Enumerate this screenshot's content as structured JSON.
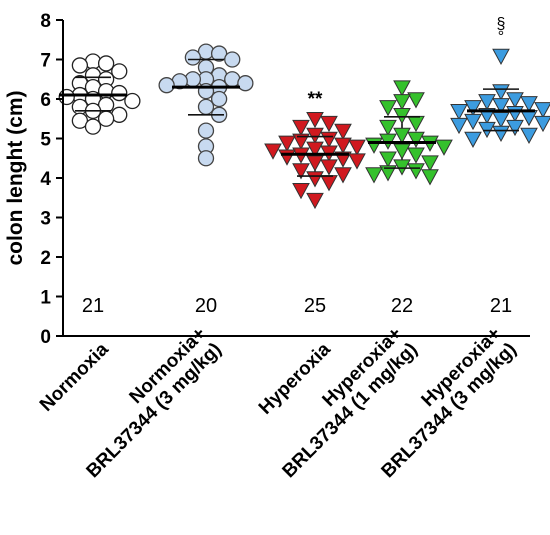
{
  "chart_data": {
    "type": "scatter",
    "title": "",
    "xlabel": "",
    "ylabel": "colon lenght (cm)",
    "ylim": [
      0,
      8
    ],
    "yticks": [
      "0",
      "1",
      "2",
      "3",
      "4",
      "5",
      "6",
      "7",
      "8"
    ],
    "grid": false,
    "categories": [
      {
        "lines": [
          "Normoxia"
        ]
      },
      {
        "lines": [
          "Normoxia+",
          "BRL37344 (3 mg/kg)"
        ]
      },
      {
        "lines": [
          "Hyperoxia"
        ]
      },
      {
        "lines": [
          "Hyperoxia+",
          "BRL37344 (1 mg/kg)"
        ]
      },
      {
        "lines": [
          "Hyperoxia+",
          "BRL37344 (3 mg/kg)"
        ]
      }
    ],
    "series": [
      {
        "marker": "circle",
        "fill": "#ffffff",
        "stroke": "#222222",
        "mean": 6.1,
        "sd_low": 5.7,
        "sd_high": 6.55,
        "n": "21",
        "annotation": [],
        "values": [
          6.95,
          6.9,
          6.85,
          6.7,
          6.6,
          6.5,
          6.4,
          6.3,
          6.2,
          6.15,
          6.1,
          6.05,
          6.0,
          5.95,
          5.85,
          5.8,
          5.7,
          5.6,
          5.5,
          5.45,
          5.3
        ]
      },
      {
        "marker": "circle",
        "fill": "#c8daf0",
        "stroke": "#444444",
        "mean": 6.3,
        "sd_low": 5.6,
        "sd_high": 7.0,
        "n": "20",
        "annotation": [],
        "values": [
          7.2,
          7.15,
          7.05,
          7.0,
          6.8,
          6.6,
          6.5,
          6.5,
          6.5,
          6.45,
          6.4,
          6.35,
          6.3,
          6.2,
          6.0,
          5.8,
          5.6,
          5.2,
          4.8,
          4.5
        ]
      },
      {
        "marker": "triangle",
        "fill": "#d0191f",
        "stroke": "#333333",
        "mean": 4.6,
        "sd_low": 4.05,
        "sd_high": 5.05,
        "n": "25",
        "annotation": [
          "**"
        ],
        "values": [
          5.5,
          5.4,
          5.3,
          5.2,
          5.1,
          5.0,
          4.95,
          4.9,
          4.85,
          4.8,
          4.75,
          4.7,
          4.65,
          4.6,
          4.55,
          4.5,
          4.45,
          4.4,
          4.3,
          4.2,
          4.1,
          4.0,
          3.9,
          3.7,
          3.45
        ]
      },
      {
        "marker": "triangle",
        "fill": "#35c12c",
        "stroke": "#333333",
        "mean": 4.9,
        "sd_low": 4.25,
        "sd_high": 5.55,
        "n": "22",
        "annotation": [],
        "values": [
          6.3,
          6.0,
          5.95,
          5.8,
          5.6,
          5.4,
          5.3,
          5.1,
          5.0,
          4.95,
          4.9,
          4.85,
          4.8,
          4.7,
          4.6,
          4.5,
          4.4,
          4.3,
          4.2,
          4.15,
          4.1,
          4.05
        ]
      },
      {
        "marker": "triangle",
        "fill": "#3c9ce0",
        "stroke": "#333333",
        "mean": 5.7,
        "sd_low": 5.2,
        "sd_high": 6.25,
        "n": "21",
        "annotation": [
          "§",
          "°"
        ],
        "values": [
          7.1,
          6.2,
          6.0,
          5.95,
          5.9,
          5.85,
          5.8,
          5.75,
          5.7,
          5.65,
          5.6,
          5.55,
          5.5,
          5.45,
          5.4,
          5.35,
          5.3,
          5.25,
          5.15,
          5.1,
          5.0
        ]
      }
    ]
  }
}
